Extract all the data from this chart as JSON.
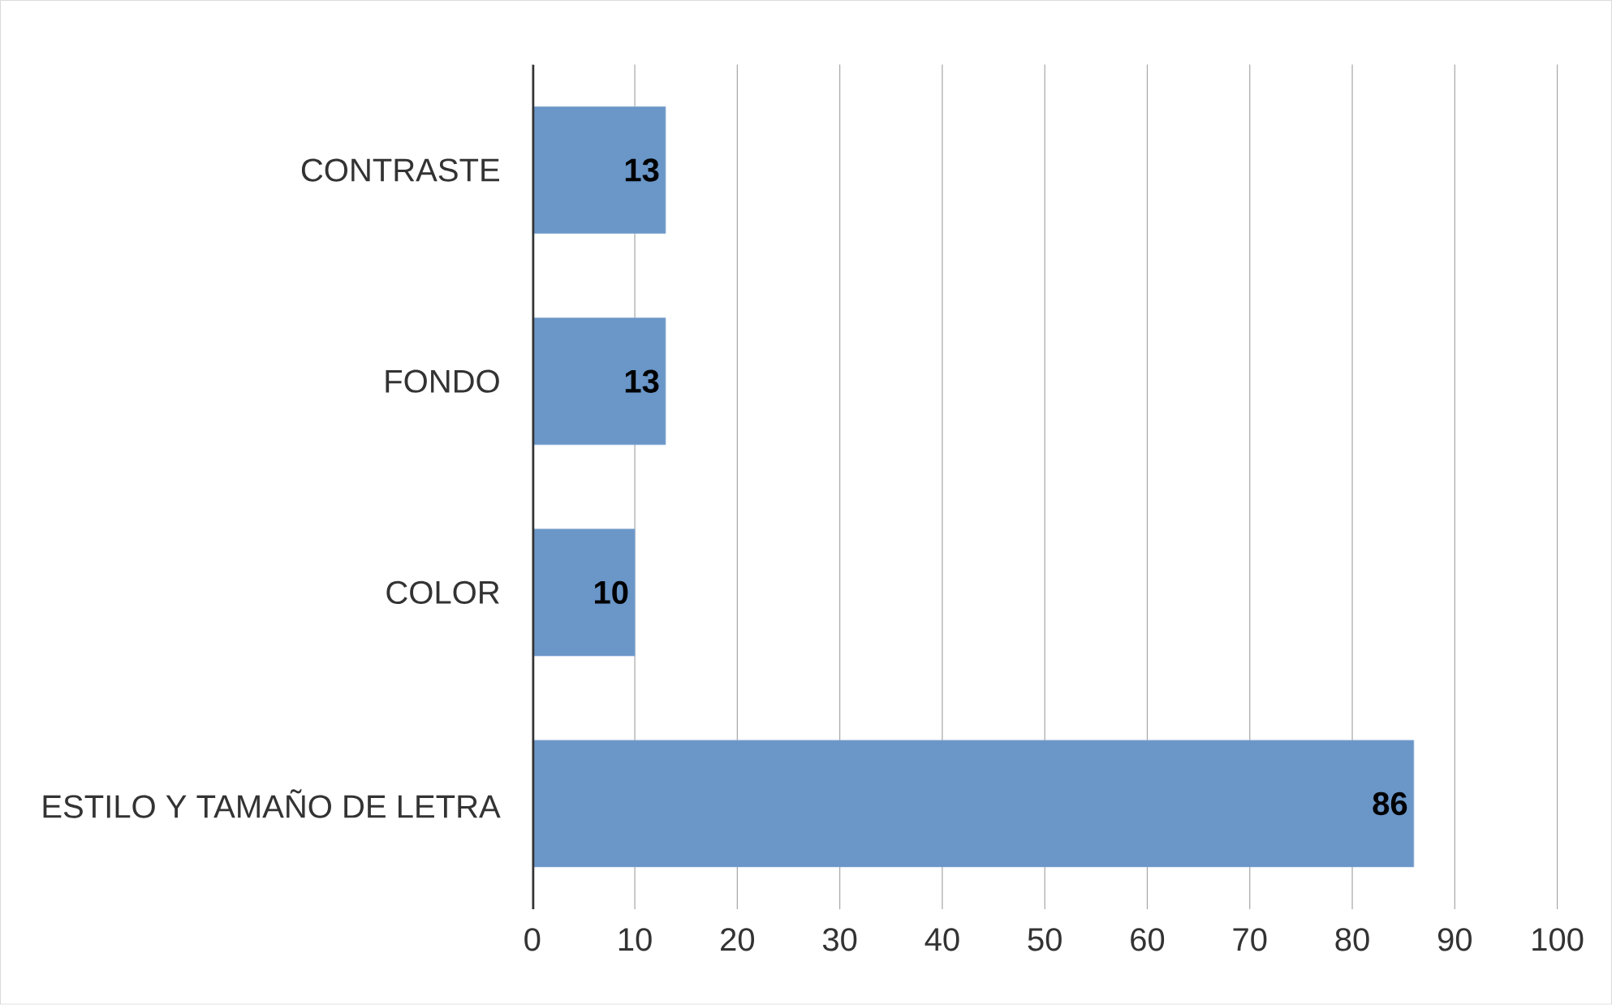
{
  "chart_data": {
    "type": "bar",
    "orientation": "horizontal",
    "categories": [
      "CONTRASTE",
      "FONDO",
      "COLOR",
      "ESTILO Y TAMAÑO DE LETRA"
    ],
    "values": [
      13,
      13,
      10,
      86
    ],
    "color": "#6a96c8",
    "xlim": [
      0,
      100
    ],
    "xticks": [
      0,
      10,
      20,
      30,
      40,
      50,
      60,
      70,
      80,
      90,
      100
    ],
    "grid": "x",
    "data_labels": true
  }
}
